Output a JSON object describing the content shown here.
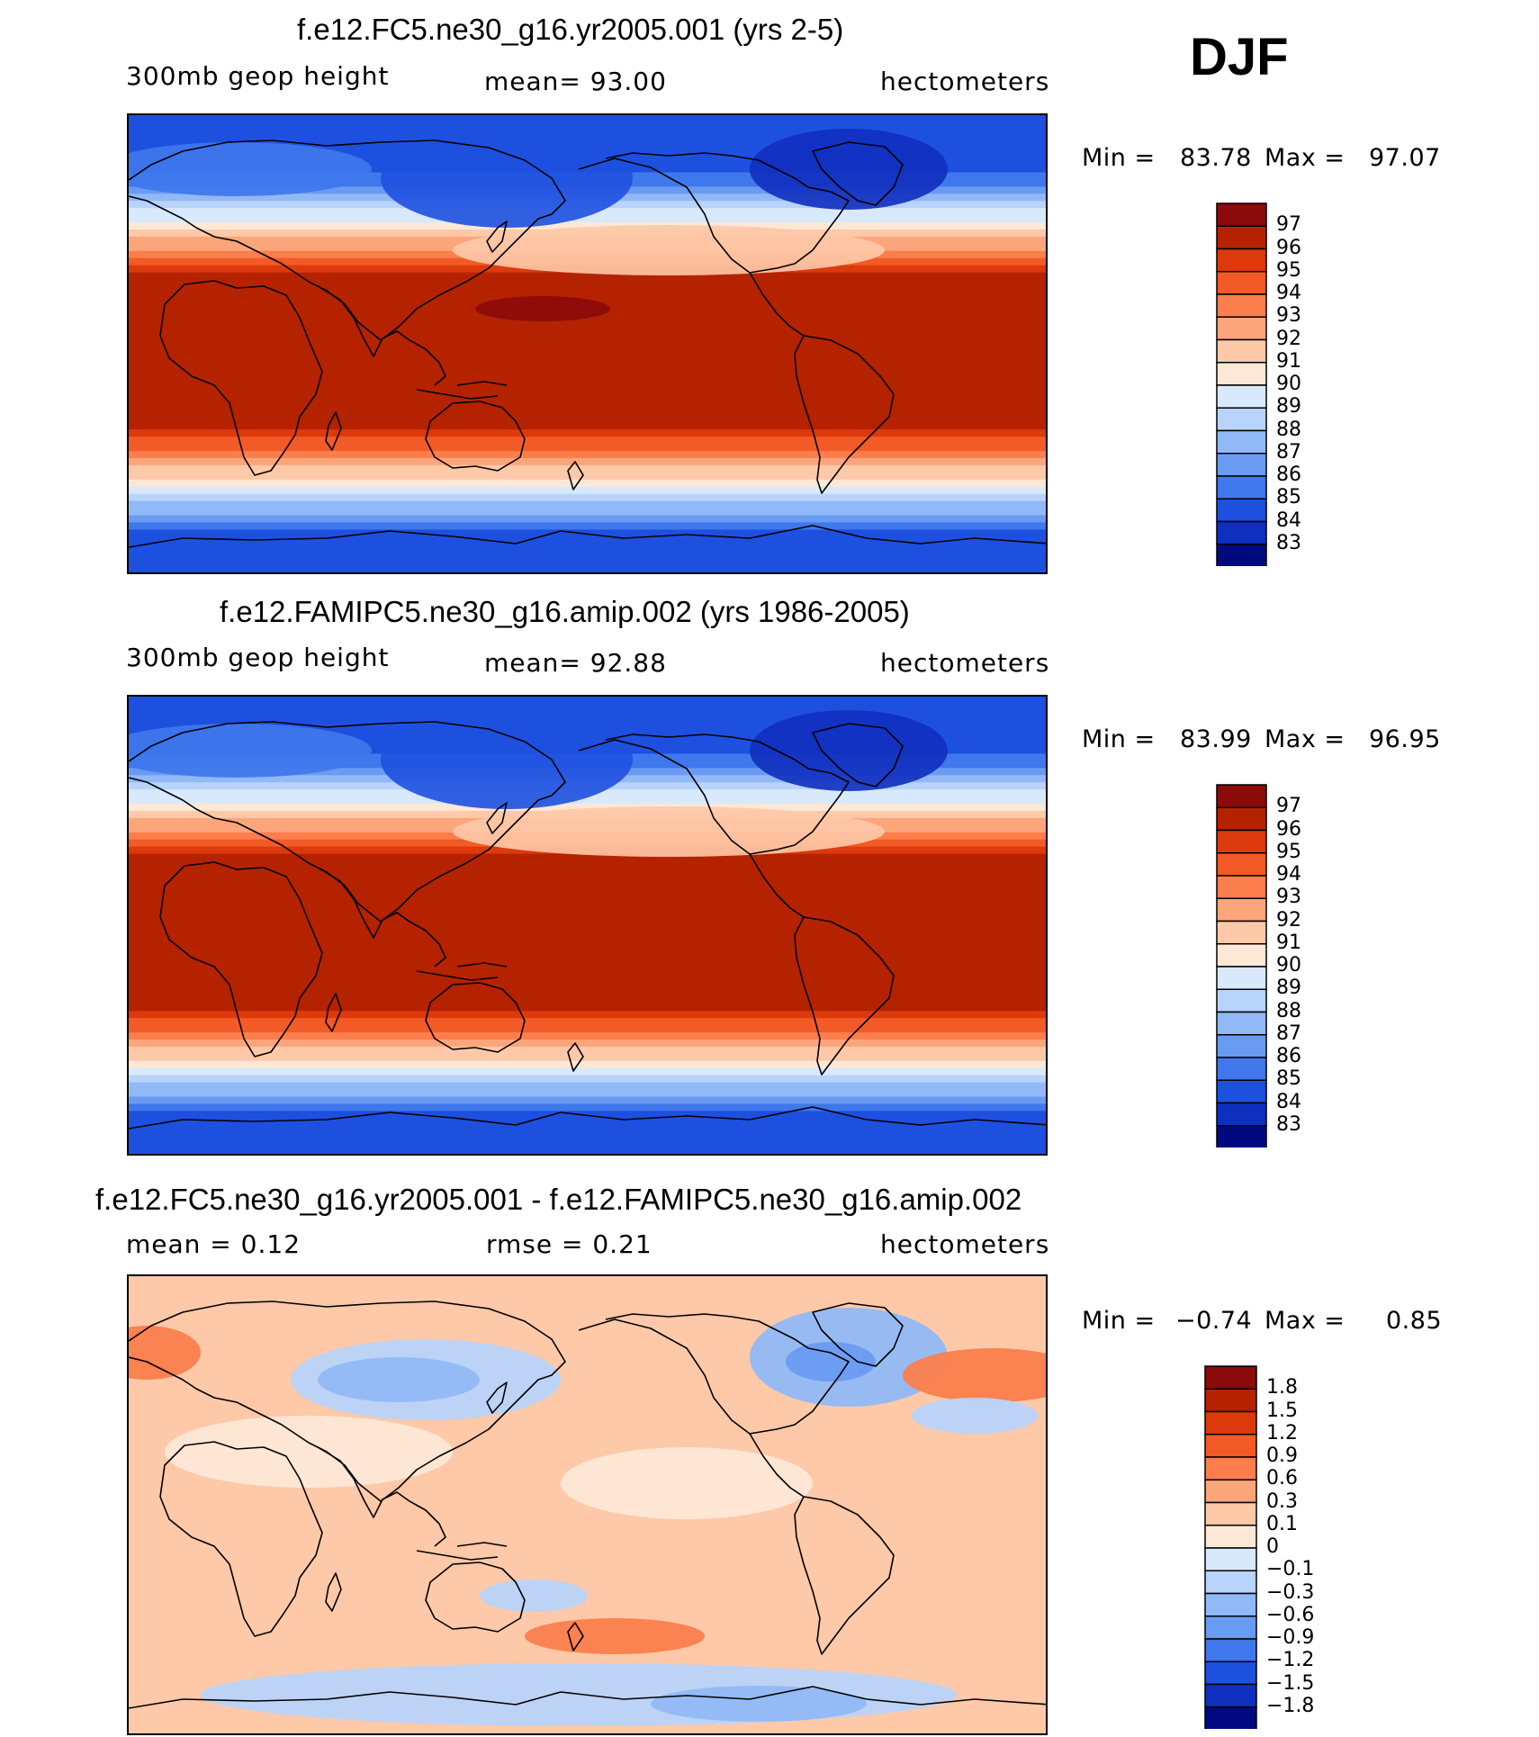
{
  "season": "DJF",
  "panels": [
    {
      "title": "f.e12.FC5.ne30_g16.yr2005.001 (yrs 2-5)",
      "left_label": "300mb  geop  height",
      "center_label": "mean=   93.00",
      "right_label": "hectometers",
      "min_label": "Min  =",
      "min_value": "83.78",
      "max_label": "Max  =",
      "max_value": "97.07",
      "palette": "abs",
      "features": "djf_test"
    },
    {
      "title": "f.e12.FAMIPC5.ne30_g16.amip.002 (yrs 1986-2005)",
      "left_label": "300mb  geop  height",
      "center_label": "mean=   92.88",
      "right_label": "hectometers",
      "min_label": "Min  =",
      "min_value": "83.99",
      "max_label": "Max  =",
      "max_value": "96.95",
      "palette": "abs",
      "features": "djf_ctrl"
    },
    {
      "title": "f.e12.FC5.ne30_g16.yr2005.001 - f.e12.FAMIPC5.ne30_g16.amip.002",
      "left_label": "mean  =     0.12",
      "center_label": "rmse  =     0.21",
      "right_label": "hectometers",
      "min_label": "Min  =",
      "min_value": "−0.74",
      "max_label": "Max  =",
      "max_value": "0.85",
      "palette": "diff",
      "features": "diff"
    }
  ],
  "colorbars": {
    "abs": {
      "labels": [
        "97",
        "96",
        "95",
        "94",
        "93",
        "92",
        "91",
        "90",
        "89",
        "88",
        "87",
        "86",
        "85",
        "84",
        "83"
      ],
      "colors": [
        "#8b0a0a",
        "#b52200",
        "#dc3a0c",
        "#f25a26",
        "#fb7e4c",
        "#fca57b",
        "#fdc9a8",
        "#fde8d6",
        "#d8e9fb",
        "#b8d4fa",
        "#92b9f7",
        "#6a9bf2",
        "#3f78ec",
        "#1e50df",
        "#0f2fbf",
        "#000a80"
      ]
    },
    "diff": {
      "labels": [
        "1.8",
        "1.5",
        "1.2",
        "0.9",
        "0.6",
        "0.3",
        "0.1",
        "0",
        "−0.1",
        "−0.3",
        "−0.6",
        "−0.9",
        "−1.2",
        "−1.5",
        "−1.8"
      ],
      "colors": [
        "#8b0a0a",
        "#b52200",
        "#dc3a0c",
        "#f25a26",
        "#fb7e4c",
        "#fca57b",
        "#fdc9a8",
        "#fde8d6",
        "#d8e9fb",
        "#b8d4fa",
        "#92b9f7",
        "#6a9bf2",
        "#3f78ec",
        "#1e50df",
        "#0f2fbf",
        "#000a80"
      ]
    }
  }
}
